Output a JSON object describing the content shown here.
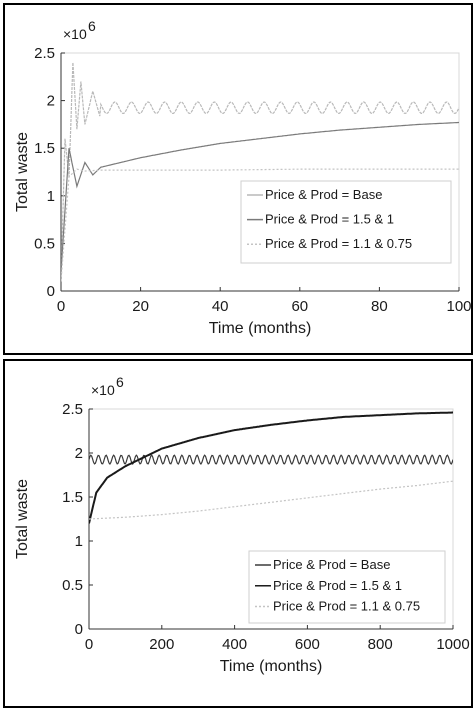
{
  "charts": [
    {
      "type": "line",
      "xlabel": "Time (months)",
      "ylabel": "Total waste",
      "y_multiplier": "×10",
      "y_exponent": "6",
      "xlim": [
        0,
        100
      ],
      "ylim": [
        0,
        2.5
      ],
      "xticks": [
        0,
        20,
        40,
        60,
        80,
        100
      ],
      "yticks": [
        0,
        0.5,
        1,
        1.5,
        2,
        2.5
      ],
      "ytick_labels": [
        "0",
        "0.5",
        "1",
        "1.5",
        "2",
        "2.5"
      ],
      "legend": [
        "Price & Prod = Base",
        "Price & Prod =  1.5 & 1",
        "Price & Prod =  1.1 & 0.75"
      ],
      "series_colors": [
        "#b9b9b9",
        "#7a7a7a",
        "#c4c4c4"
      ]
    },
    {
      "type": "line",
      "xlabel": "Time (months)",
      "ylabel": "Total waste",
      "y_multiplier": "×10",
      "y_exponent": "6",
      "xlim": [
        0,
        1000
      ],
      "ylim": [
        0,
        2.5
      ],
      "xticks": [
        0,
        200,
        400,
        600,
        800,
        1000
      ],
      "yticks": [
        0,
        0.5,
        1,
        1.5,
        2,
        2.5
      ],
      "ytick_labels": [
        "0",
        "0.5",
        "1",
        "1.5",
        "2",
        "2.5"
      ],
      "legend": [
        "Price & Prod = Base",
        "Price & Prod =  1.5 & 1",
        "Price & Prod =  1.1 & 0.75"
      ],
      "series_colors": [
        "#3a3a3a",
        "#1a1a1a",
        "#c4c4c4"
      ]
    }
  ],
  "chart_data": [
    {
      "type": "line",
      "xlabel": "Time (months)",
      "ylabel": "Total waste",
      "xlim": [
        0,
        100
      ],
      "ylim": [
        0,
        2.5
      ],
      "y_scale_factor": 1000000,
      "series": [
        {
          "name": "Price & Prod = Base",
          "x": [
            0,
            1,
            2,
            3,
            4,
            5,
            6,
            8,
            10,
            20,
            30,
            40,
            50,
            60,
            70,
            80,
            90,
            100
          ],
          "y": [
            0.1,
            1.6,
            1.2,
            2.4,
            1.7,
            2.2,
            1.75,
            2.1,
            1.8,
            2.0,
            1.85,
            2.0,
            1.85,
            2.0,
            1.85,
            2.0,
            1.85,
            1.95
          ]
        },
        {
          "name": "Price & Prod =  1.5 & 1",
          "x": [
            0,
            2,
            4,
            6,
            8,
            10,
            20,
            30,
            40,
            50,
            60,
            70,
            80,
            90,
            100
          ],
          "y": [
            0.2,
            1.5,
            1.1,
            1.35,
            1.22,
            1.3,
            1.4,
            1.48,
            1.55,
            1.6,
            1.65,
            1.69,
            1.72,
            1.75,
            1.77
          ]
        },
        {
          "name": "Price & Prod =  1.1 & 0.75",
          "x": [
            0,
            2,
            4,
            6,
            10,
            20,
            40,
            60,
            80,
            100
          ],
          "y": [
            0.1,
            1.2,
            1.28,
            1.26,
            1.27,
            1.27,
            1.27,
            1.28,
            1.28,
            1.28
          ]
        }
      ]
    },
    {
      "type": "line",
      "xlabel": "Time (months)",
      "ylabel": "Total waste",
      "xlim": [
        0,
        1000
      ],
      "ylim": [
        0,
        2.5
      ],
      "y_scale_factor": 1000000,
      "series": [
        {
          "name": "Price & Prod = Base",
          "x": [
            0,
            100,
            200,
            300,
            400,
            500,
            600,
            700,
            800,
            900,
            1000
          ],
          "y": [
            1.9,
            1.95,
            1.9,
            1.95,
            1.9,
            1.95,
            1.9,
            1.95,
            1.9,
            1.95,
            1.92
          ]
        },
        {
          "name": "Price & Prod =  1.5 & 1",
          "x": [
            0,
            20,
            50,
            100,
            150,
            200,
            300,
            400,
            500,
            600,
            700,
            800,
            900,
            1000
          ],
          "y": [
            1.2,
            1.55,
            1.72,
            1.85,
            1.95,
            2.05,
            2.17,
            2.26,
            2.32,
            2.37,
            2.41,
            2.43,
            2.45,
            2.46
          ]
        },
        {
          "name": "Price & Prod =  1.1 & 0.75",
          "x": [
            0,
            100,
            200,
            300,
            400,
            500,
            600,
            700,
            800,
            900,
            1000
          ],
          "y": [
            1.25,
            1.27,
            1.3,
            1.34,
            1.39,
            1.44,
            1.49,
            1.54,
            1.59,
            1.63,
            1.68
          ]
        }
      ]
    }
  ]
}
